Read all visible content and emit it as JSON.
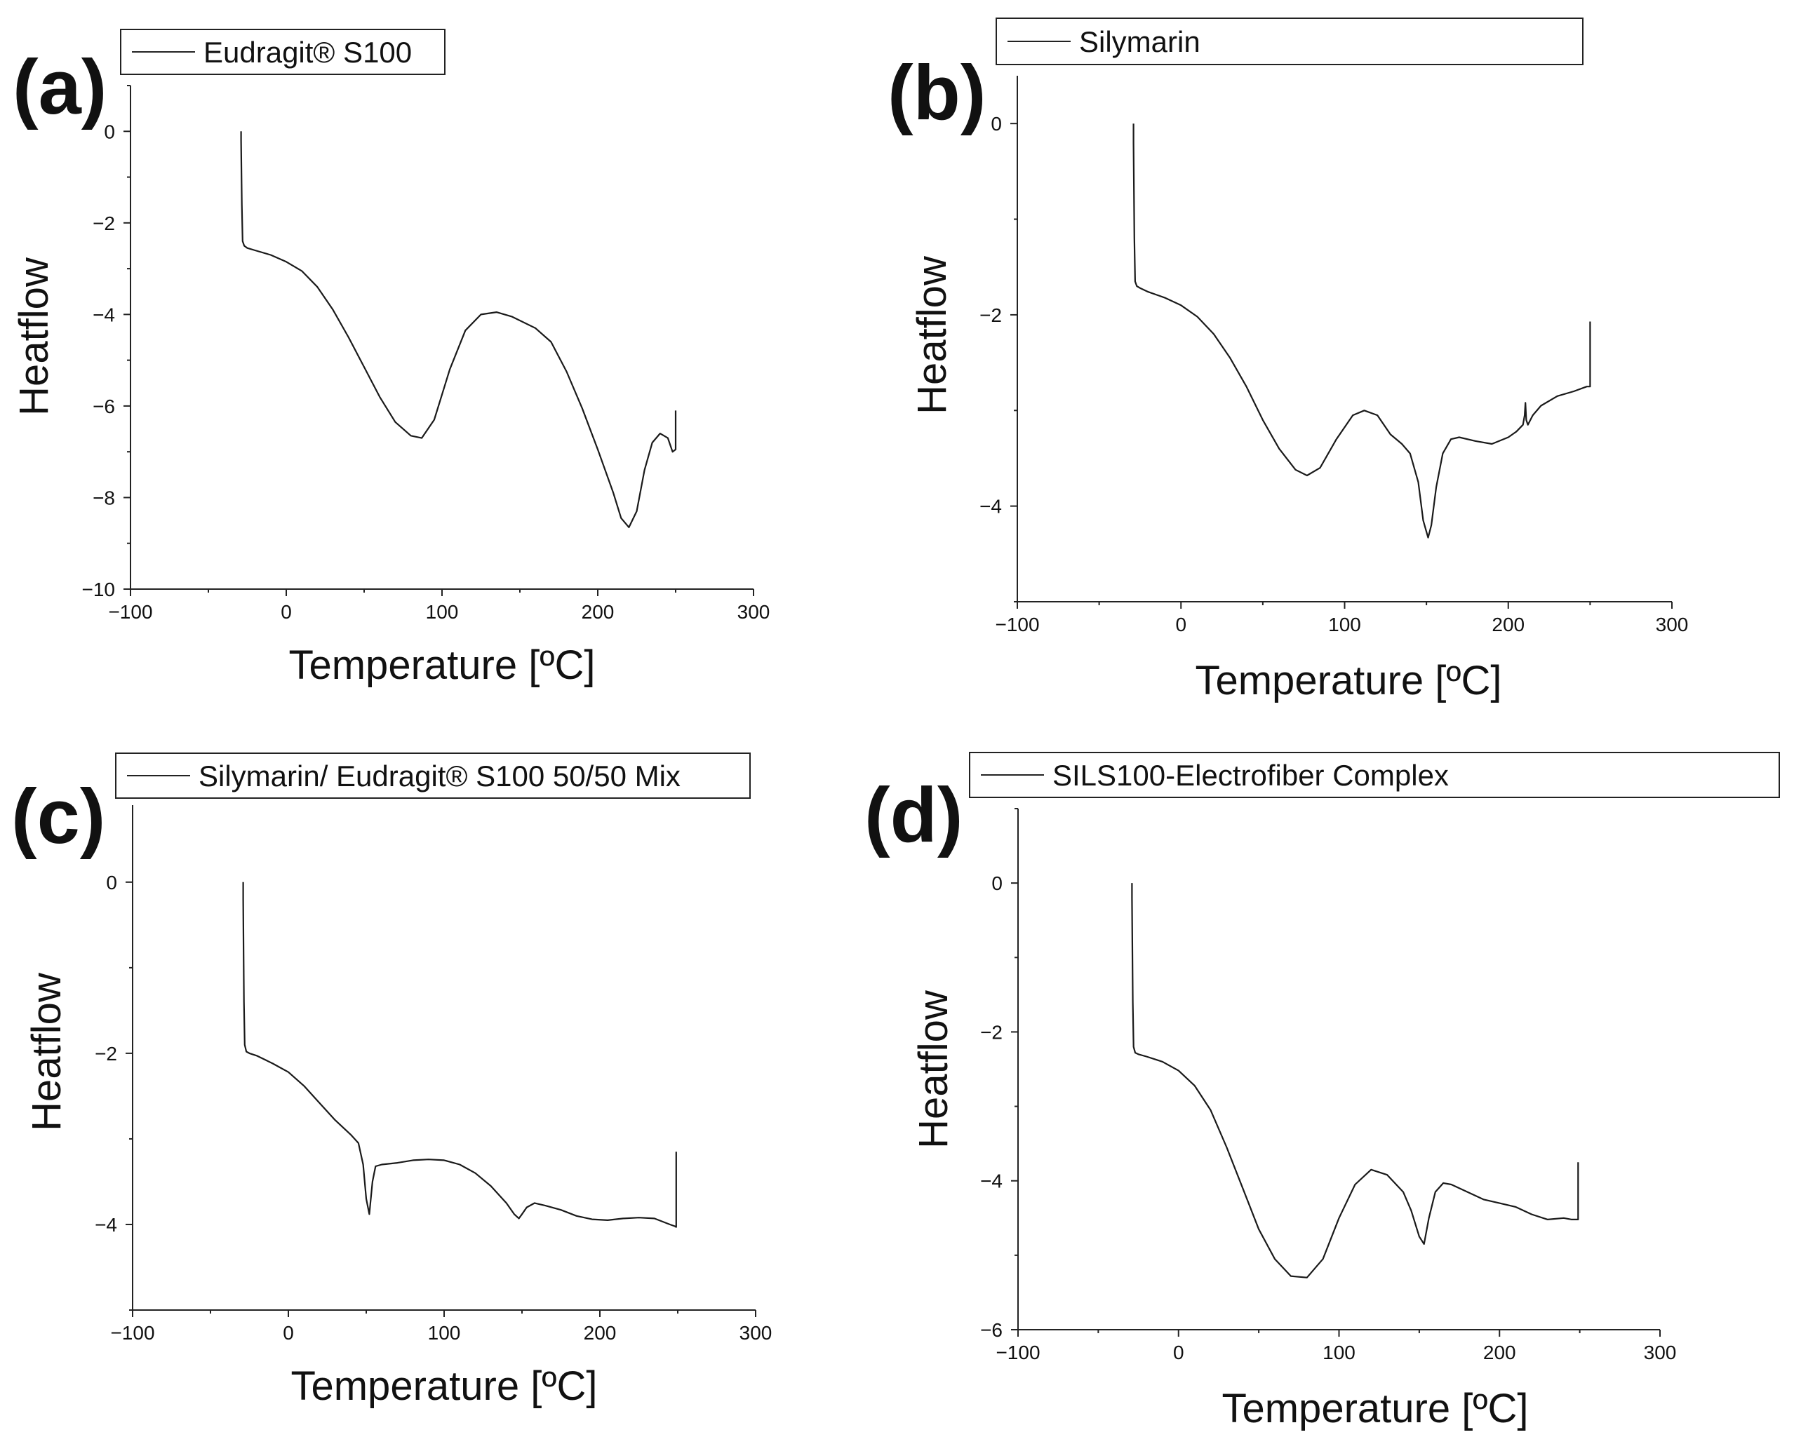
{
  "chart_data": [
    {
      "panel": "(a)",
      "type": "line",
      "legend": "Eudragit® S100",
      "xlabel": "Temperature [ºC]",
      "ylabel": "Heatflow",
      "xlim": [
        -100,
        300
      ],
      "ylim": [
        -10,
        1
      ],
      "xticks": [
        -100,
        0,
        100,
        200,
        300
      ],
      "xtick_labels": [
        "−100",
        "0",
        "100",
        "200",
        "300"
      ],
      "yticks": [
        0,
        -2,
        -4,
        -6,
        -8,
        -10
      ],
      "ytick_labels": [
        "0",
        "−2",
        "−4",
        "−6",
        "−8",
        "−10"
      ],
      "series": [
        {
          "name": "Eudragit® S100",
          "x": [
            -29,
            -29,
            -28.5,
            -28,
            -27,
            -25,
            -20,
            -10,
            0,
            10,
            20,
            30,
            40,
            50,
            60,
            70,
            80,
            87,
            95,
            105,
            115,
            125,
            135,
            145,
            160,
            170,
            180,
            190,
            200,
            210,
            215,
            220,
            225,
            230,
            235,
            240,
            245,
            248,
            250,
            250
          ],
          "y": [
            0,
            -0.2,
            -1.6,
            -2.4,
            -2.5,
            -2.55,
            -2.6,
            -2.7,
            -2.85,
            -3.05,
            -3.4,
            -3.9,
            -4.5,
            -5.15,
            -5.8,
            -6.35,
            -6.65,
            -6.7,
            -6.3,
            -5.2,
            -4.35,
            -4.0,
            -3.95,
            -4.05,
            -4.3,
            -4.6,
            -5.25,
            -6.05,
            -6.95,
            -7.9,
            -8.45,
            -8.65,
            -8.3,
            -7.4,
            -6.8,
            -6.6,
            -6.7,
            -7.0,
            -6.95,
            -6.1
          ]
        }
      ]
    },
    {
      "panel": "(b)",
      "type": "line",
      "legend": "Silymarin",
      "xlabel": "Temperature [ºC]",
      "ylabel": "Heatflow",
      "xlim": [
        -100,
        300
      ],
      "ylim": [
        -5,
        0.5
      ],
      "xticks": [
        -100,
        0,
        100,
        200,
        300
      ],
      "xtick_labels": [
        "−100",
        "0",
        "100",
        "200",
        "300"
      ],
      "yticks": [
        0,
        -2,
        -4
      ],
      "ytick_labels": [
        "0",
        "−2",
        "−4"
      ],
      "series": [
        {
          "name": "Silymarin",
          "x": [
            -29,
            -29,
            -28.5,
            -28,
            -27,
            -25,
            -20,
            -10,
            0,
            10,
            20,
            30,
            40,
            50,
            60,
            70,
            77,
            85,
            95,
            105,
            112,
            120,
            128,
            135,
            140,
            145,
            148,
            151,
            153,
            156,
            160,
            165,
            170,
            180,
            190,
            200,
            205,
            209,
            210,
            210.5,
            211,
            212,
            215,
            220,
            230,
            240,
            248,
            250,
            250
          ],
          "y": [
            0,
            -0.2,
            -1.2,
            -1.65,
            -1.7,
            -1.72,
            -1.76,
            -1.82,
            -1.9,
            -2.02,
            -2.2,
            -2.45,
            -2.75,
            -3.1,
            -3.4,
            -3.62,
            -3.68,
            -3.6,
            -3.3,
            -3.05,
            -3.0,
            -3.05,
            -3.25,
            -3.35,
            -3.45,
            -3.75,
            -4.15,
            -4.33,
            -4.2,
            -3.8,
            -3.45,
            -3.3,
            -3.28,
            -3.32,
            -3.35,
            -3.28,
            -3.22,
            -3.15,
            -3.05,
            -2.92,
            -3.1,
            -3.15,
            -3.05,
            -2.95,
            -2.85,
            -2.8,
            -2.75,
            -2.75,
            -2.07
          ]
        }
      ]
    },
    {
      "panel": "(c)",
      "type": "line",
      "legend": "Silymarin/ Eudragit® S100 50/50 Mix",
      "xlabel": "Temperature [ºC]",
      "ylabel": "Heatflow",
      "xlim": [
        -100,
        300
      ],
      "ylim": [
        -5,
        0.9
      ],
      "xticks": [
        -100,
        0,
        100,
        200,
        300
      ],
      "xtick_labels": [
        "−100",
        "0",
        "100",
        "200",
        "300"
      ],
      "yticks": [
        0,
        -2,
        -4
      ],
      "ytick_labels": [
        "0",
        "−2",
        "−4"
      ],
      "series": [
        {
          "name": "Silymarin/ Eudragit® S100 50/50 Mix",
          "x": [
            -29,
            -29,
            -28.5,
            -28,
            -27,
            -25,
            -20,
            -10,
            0,
            10,
            20,
            30,
            40,
            45,
            48,
            50,
            52,
            54,
            56,
            60,
            70,
            80,
            90,
            100,
            110,
            120,
            130,
            140,
            145,
            148,
            150,
            153,
            158,
            165,
            175,
            185,
            195,
            205,
            215,
            225,
            235,
            245,
            248,
            249,
            249
          ],
          "y": [
            0,
            -0.2,
            -1.4,
            -1.9,
            -1.98,
            -2.0,
            -2.03,
            -2.12,
            -2.22,
            -2.38,
            -2.58,
            -2.78,
            -2.95,
            -3.05,
            -3.3,
            -3.7,
            -3.88,
            -3.5,
            -3.32,
            -3.3,
            -3.28,
            -3.25,
            -3.24,
            -3.25,
            -3.3,
            -3.4,
            -3.55,
            -3.75,
            -3.88,
            -3.93,
            -3.88,
            -3.8,
            -3.75,
            -3.78,
            -3.83,
            -3.9,
            -3.94,
            -3.95,
            -3.93,
            -3.92,
            -3.93,
            -4.0,
            -4.02,
            -4.03,
            -3.15
          ]
        }
      ]
    },
    {
      "panel": "(d)",
      "type": "line",
      "legend": "SILS100-Electrofiber Complex",
      "xlabel": "Temperature [ºC]",
      "ylabel": "Heatflow",
      "xlim": [
        -100,
        300
      ],
      "ylim": [
        -6,
        1
      ],
      "xticks": [
        -100,
        0,
        100,
        200,
        300
      ],
      "xtick_labels": [
        "−100",
        "0",
        "100",
        "200",
        "300"
      ],
      "yticks": [
        0,
        -2,
        -4,
        -6
      ],
      "ytick_labels": [
        "0",
        "−2",
        "−4",
        "−6"
      ],
      "series": [
        {
          "name": "SILS100-Electrofiber Complex",
          "x": [
            -29,
            -29,
            -28.5,
            -28,
            -27,
            -25,
            -20,
            -10,
            0,
            10,
            20,
            30,
            40,
            50,
            60,
            70,
            80,
            90,
            100,
            110,
            120,
            130,
            140,
            145,
            150,
            153,
            156,
            160,
            165,
            170,
            180,
            190,
            200,
            210,
            220,
            230,
            240,
            245,
            249,
            249
          ],
          "y": [
            0,
            -0.2,
            -1.6,
            -2.2,
            -2.28,
            -2.3,
            -2.33,
            -2.4,
            -2.52,
            -2.72,
            -3.05,
            -3.55,
            -4.1,
            -4.65,
            -5.05,
            -5.28,
            -5.3,
            -5.05,
            -4.5,
            -4.05,
            -3.85,
            -3.92,
            -4.15,
            -4.4,
            -4.75,
            -4.85,
            -4.5,
            -4.15,
            -4.03,
            -4.05,
            -4.15,
            -4.25,
            -4.3,
            -4.35,
            -4.45,
            -4.52,
            -4.5,
            -4.52,
            -4.52,
            -3.75
          ]
        }
      ]
    }
  ]
}
